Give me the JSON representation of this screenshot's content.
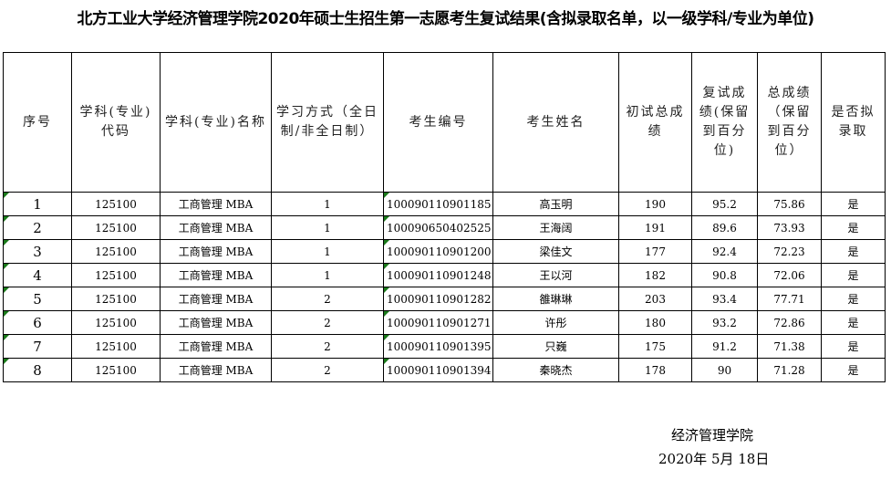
{
  "title": "北方工业大学经济管理学院2020年硕士生招生第一志愿考生复试结果(含拟录取名单，以一级学科/专业为单位)",
  "headers": [
    "序号",
    "学科(专业)代码",
    "学科(专业)名称",
    "学习方式（全日制/非全日制）",
    "考生编号",
    "考生姓名",
    "初试总成绩",
    "复试成绩(保留到百分位)",
    "总成绩（保留到百分位）",
    "是否拟录取"
  ],
  "rows": [
    [
      "1",
      "125100",
      "工商管理 MBA",
      "1",
      "100090110901185",
      "高玉明",
      "190",
      "95.2",
      "75.86",
      "是"
    ],
    [
      "2",
      "125100",
      "工商管理 MBA",
      "1",
      "100090650402525",
      "王海阔",
      "191",
      "89.6",
      "73.93",
      "是"
    ],
    [
      "3",
      "125100",
      "工商管理 MBA",
      "1",
      "100090110901200",
      "梁佳文",
      "177",
      "92.4",
      "72.23",
      "是"
    ],
    [
      "4",
      "125100",
      "工商管理 MBA",
      "1",
      "100090110901248",
      "王以河",
      "182",
      "90.8",
      "72.06",
      "是"
    ],
    [
      "5",
      "125100",
      "工商管理 MBA",
      "2",
      "100090110901282",
      "雒琳琳",
      "203",
      "93.4",
      "77.71",
      "是"
    ],
    [
      "6",
      "125100",
      "工商管理 MBA",
      "2",
      "100090110901271",
      "许彤",
      "180",
      "93.2",
      "72.86",
      "是"
    ],
    [
      "7",
      "125100",
      "工商管理 MBA",
      "2",
      "100090110901395",
      "只巍",
      "175",
      "91.2",
      "71.38",
      "是"
    ],
    [
      "8",
      "125100",
      "工商管理 MBA",
      "2",
      "100090110901394",
      "秦晓杰",
      "178",
      "90",
      "71.28",
      "是"
    ]
  ],
  "footer": {
    "org": "经济管理学院",
    "date": "2020年  5月  18日"
  }
}
